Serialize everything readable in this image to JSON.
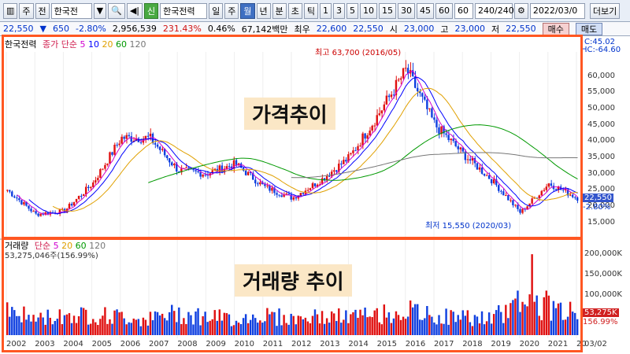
{
  "toolbar": {
    "code_prefix": "주",
    "code_type": "전",
    "stock_name": "한국전",
    "stock_full": "한국전력",
    "period_day": "일",
    "period_week": "주",
    "period_month": "월",
    "period_year": "년",
    "period_min": "분",
    "period_sec": "초",
    "period_tick": "틱",
    "intervals": [
      "1",
      "3",
      "5",
      "10",
      "15",
      "30",
      "45",
      "60"
    ],
    "interval_value": "60",
    "count": "240/240",
    "date": "2022/03/0",
    "more": "더보기"
  },
  "quote": {
    "price": "22,550",
    "change": "650",
    "change_pct": "-2.80%",
    "volume": "2,956,539",
    "vol_ratio": "231.43%",
    "turnover": "0.46%",
    "amount": "67,142백만",
    "prev_label": "최우",
    "prev": "22,600",
    "prev2": "22,550",
    "open_label": "시",
    "open": "23,000",
    "high_label": "고",
    "high": "23,000",
    "low_label": "저",
    "low": "22,550",
    "buy": "매수",
    "sell": "매도"
  },
  "price_panel": {
    "legend_name": "한국전력",
    "legend_ma": "종가 단순",
    "ma_periods": [
      "5",
      "10",
      "20",
      "60",
      "120"
    ],
    "title": "가격추이",
    "high_annot": "최고 63,700 (2016/05)",
    "low_annot": "최저 15,550 (2020/03)",
    "right_top1": "C:45.02",
    "right_top2": "HC:-64.60",
    "last_price": "22,550",
    "last_pct": "-2.80%",
    "y_ticks": [
      "60,000",
      "55,000",
      "50,000",
      "45,000",
      "40,000",
      "35,000",
      "30,000",
      "25,000",
      "20,000",
      "15,000"
    ]
  },
  "volume_panel": {
    "legend_name": "거래량",
    "legend_ma": "단순",
    "ma_periods": [
      "5",
      "20",
      "60",
      "120"
    ],
    "value_label": "53,275,046주(156.99%)",
    "title": "거래량 추이",
    "last_vol": "53,275K",
    "last_pct": "156.99%",
    "y_ticks": [
      "200,000K",
      "150,000K",
      "100,000K",
      "50,000K"
    ]
  },
  "x_axis": [
    "2002",
    "2003",
    "2004",
    "2005",
    "2006",
    "2007",
    "2008",
    "2009",
    "2010",
    "2011",
    "2012",
    "2013",
    "2014",
    "2015",
    "2016",
    "2017",
    "2018",
    "2019",
    "2020",
    "2021",
    "20",
    "03/02"
  ],
  "chart_data": {
    "type": "line",
    "x": [
      "2002",
      "2003",
      "2004",
      "2005",
      "2006",
      "2007",
      "2008",
      "2009",
      "2010",
      "2011",
      "2012",
      "2013",
      "2014",
      "2015",
      "2016",
      "2017",
      "2018",
      "2019",
      "2020",
      "2021",
      "2022"
    ],
    "series": [
      {
        "name": "한국전력",
        "values": [
          25000,
          17500,
          18500,
          27000,
          41000,
          41000,
          31000,
          30000,
          33000,
          26000,
          22500,
          28000,
          35000,
          48000,
          62000,
          45000,
          36000,
          28000,
          18000,
          27000,
          22550
        ]
      }
    ],
    "volume": [
      60000,
      40000,
      50000,
      50000,
      45000,
      40000,
      55000,
      45000,
      40000,
      50000,
      40000,
      45000,
      45000,
      50000,
      60000,
      45000,
      45000,
      40000,
      80000,
      70000,
      53275
    ],
    "ylim": [
      13000,
      65000
    ]
  }
}
